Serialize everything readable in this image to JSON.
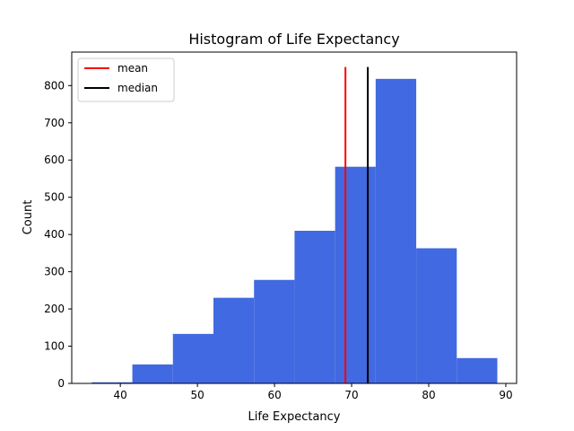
{
  "chart_data": {
    "type": "bar",
    "title": "Histogram of Life Expectancy",
    "xlabel": "Life Expectancy",
    "ylabel": "Count",
    "xlim": [
      33.7,
      91.4
    ],
    "ylim": [
      0,
      890
    ],
    "xticks": [
      40,
      50,
      60,
      70,
      80,
      90
    ],
    "yticks": [
      0,
      100,
      200,
      300,
      400,
      500,
      600,
      700,
      800
    ],
    "bin_edges": [
      36.3,
      41.56,
      46.82,
      52.08,
      57.34,
      62.6,
      67.86,
      73.12,
      78.38,
      83.64,
      88.9
    ],
    "counts": [
      3,
      51,
      133,
      230,
      278,
      410,
      582,
      818,
      363,
      68
    ],
    "bar_color": "#4169e1",
    "grid": false,
    "legend_position": "top-left",
    "reference_lines": [
      {
        "name": "mean",
        "value": 69.2,
        "color": "#ff0000",
        "y_top": 850
      },
      {
        "name": "median",
        "value": 72.1,
        "color": "#000000",
        "y_top": 850
      }
    ]
  }
}
